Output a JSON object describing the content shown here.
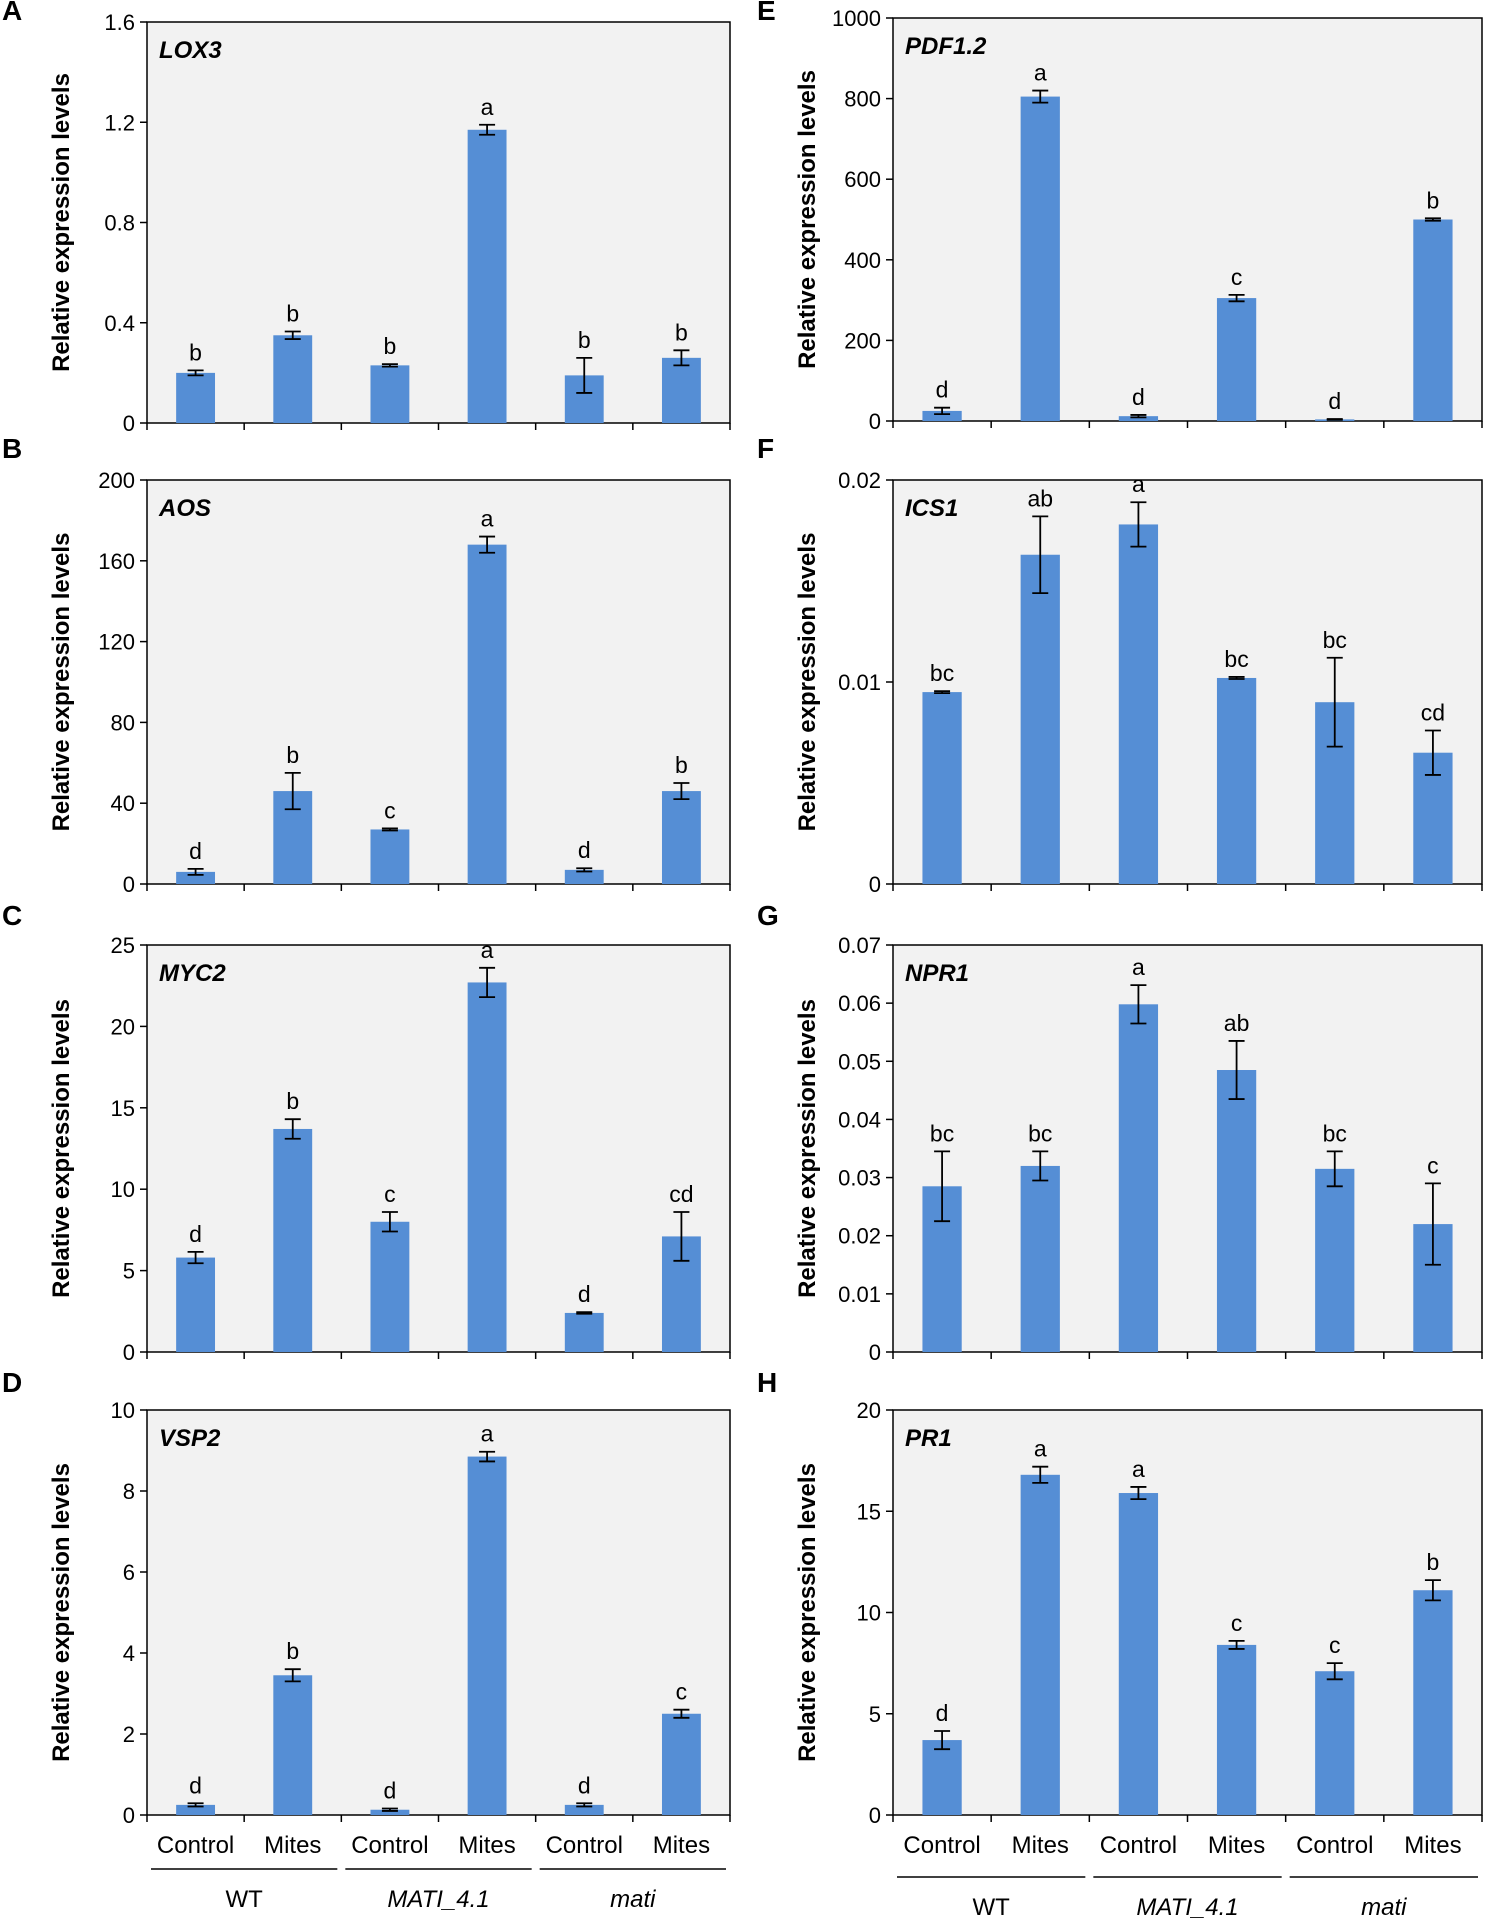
{
  "figure": {
    "bar_color": "#558ED5",
    "plot_background": "#F2F2F2",
    "group_labels": [
      "WT",
      "MATI_4.1",
      "mati"
    ],
    "group_label_italic": [
      false,
      true,
      true
    ],
    "condition_labels": [
      "Control",
      "Mites",
      "Control",
      "Mites",
      "Control",
      "Mites"
    ]
  },
  "chart_data": [
    {
      "panel": "A",
      "type": "bar",
      "gene": "LOX3",
      "ylabel": "Relative expression levels",
      "categories": [
        "WT Control",
        "WT Mites",
        "MATI_4.1 Control",
        "MATI_4.1 Mites",
        "mati Control",
        "mati Mites"
      ],
      "values": [
        0.2,
        0.35,
        0.23,
        1.17,
        0.19,
        0.26
      ],
      "errors": [
        0.01,
        0.015,
        0.005,
        0.02,
        0.07,
        0.03
      ],
      "letters": [
        "b",
        "b",
        "b",
        "a",
        "b",
        "b"
      ],
      "ylim": [
        0,
        1.6
      ],
      "yticks": [
        0,
        0.4,
        0.8,
        1.2,
        1.6
      ],
      "yticklabels": [
        "0",
        "0.4",
        "0.8",
        "1.2",
        "1.6"
      ]
    },
    {
      "panel": "B",
      "type": "bar",
      "gene": "AOS",
      "ylabel": "Relative expression levels",
      "categories": [
        "WT Control",
        "WT Mites",
        "MATI_4.1 Control",
        "MATI_4.1 Mites",
        "mati Control",
        "mati Mites"
      ],
      "values": [
        6,
        46,
        27,
        168,
        7,
        46
      ],
      "errors": [
        1.5,
        9,
        0.5,
        4,
        0.8,
        4
      ],
      "letters": [
        "d",
        "b",
        "c",
        "a",
        "d",
        "b"
      ],
      "ylim": [
        0,
        200
      ],
      "yticks": [
        0,
        40,
        80,
        120,
        160,
        200
      ],
      "yticklabels": [
        "0",
        "40",
        "80",
        "120",
        "160",
        "200"
      ]
    },
    {
      "panel": "C",
      "type": "bar",
      "gene": "MYC2",
      "ylabel": "Relative expression levels",
      "categories": [
        "WT Control",
        "WT Mites",
        "MATI_4.1 Control",
        "MATI_4.1 Mites",
        "mati Control",
        "mati Mites"
      ],
      "values": [
        5.8,
        13.7,
        8.0,
        22.7,
        2.4,
        7.1
      ],
      "errors": [
        0.35,
        0.6,
        0.6,
        0.9,
        0.05,
        1.5
      ],
      "letters": [
        "d",
        "b",
        "c",
        "a",
        "d",
        "cd"
      ],
      "ylim": [
        0,
        25
      ],
      "yticks": [
        0,
        5,
        10,
        15,
        20,
        25
      ],
      "yticklabels": [
        "0",
        "5",
        "10",
        "15",
        "20",
        "25"
      ]
    },
    {
      "panel": "D",
      "type": "bar",
      "gene": "VSP2",
      "ylabel": "Relative expression levels",
      "categories": [
        "WT Control",
        "WT Mites",
        "MATI_4.1 Control",
        "MATI_4.1 Mites",
        "mati Control",
        "mati Mites"
      ],
      "values": [
        0.25,
        3.45,
        0.13,
        8.85,
        0.25,
        2.5
      ],
      "errors": [
        0.04,
        0.15,
        0.03,
        0.12,
        0.04,
        0.1
      ],
      "letters": [
        "d",
        "b",
        "d",
        "a",
        "d",
        "c"
      ],
      "ylim": [
        0,
        10
      ],
      "yticks": [
        0,
        2,
        4,
        6,
        8,
        10
      ],
      "yticklabels": [
        "0",
        "2",
        "4",
        "6",
        "8",
        "10"
      ]
    },
    {
      "panel": "E",
      "type": "bar",
      "gene": "PDF1.2",
      "ylabel": "Relative expression levels",
      "categories": [
        "WT Control",
        "WT Mites",
        "MATI_4.1 Control",
        "MATI_4.1 Mites",
        "mati Control",
        "mati Mites"
      ],
      "values": [
        25,
        805,
        12,
        305,
        4,
        500
      ],
      "errors": [
        8,
        15,
        3,
        8,
        1,
        3
      ],
      "letters": [
        "d",
        "a",
        "d",
        "c",
        "d",
        "b"
      ],
      "ylim": [
        0,
        1000
      ],
      "yticks": [
        0,
        200,
        400,
        600,
        800,
        1000
      ],
      "yticklabels": [
        "0",
        "200",
        "400",
        "600",
        "800",
        "1000"
      ]
    },
    {
      "panel": "F",
      "type": "bar",
      "gene": "ICS1",
      "ylabel": "Relative expression levels",
      "categories": [
        "WT Control",
        "WT Mites",
        "MATI_4.1 Control",
        "MATI_4.1 Mites",
        "mati Control",
        "mati Mites"
      ],
      "values": [
        0.0095,
        0.0163,
        0.0178,
        0.0102,
        0.009,
        0.0065
      ],
      "errors": [
        5e-05,
        0.0019,
        0.0011,
        5e-05,
        0.0022,
        0.0011
      ],
      "letters": [
        "bc",
        "ab",
        "a",
        "bc",
        "bc",
        "cd"
      ],
      "ylim": [
        0,
        0.02
      ],
      "yticks": [
        0,
        0.01,
        0.02
      ],
      "yticklabels": [
        "0",
        "0.01",
        "0.02"
      ]
    },
    {
      "panel": "G",
      "type": "bar",
      "gene": "NPR1",
      "ylabel": "Relative expression levels",
      "categories": [
        "WT Control",
        "WT Mites",
        "MATI_4.1 Control",
        "MATI_4.1 Mites",
        "mati Control",
        "mati Mites"
      ],
      "values": [
        0.0285,
        0.032,
        0.0598,
        0.0485,
        0.0315,
        0.022
      ],
      "errors": [
        0.006,
        0.0025,
        0.0033,
        0.005,
        0.003,
        0.007
      ],
      "letters": [
        "bc",
        "bc",
        "a",
        "ab",
        "bc",
        "c"
      ],
      "ylim": [
        0,
        0.07
      ],
      "yticks": [
        0,
        0.01,
        0.02,
        0.03,
        0.04,
        0.05,
        0.06,
        0.07
      ],
      "yticklabels": [
        "0",
        "0.01",
        "0.02",
        "0.03",
        "0.04",
        "0.05",
        "0.06",
        "0.07"
      ]
    },
    {
      "panel": "H",
      "type": "bar",
      "gene": "PR1",
      "ylabel": "Relative expression levels",
      "categories": [
        "WT Control",
        "WT Mites",
        "MATI_4.1 Control",
        "MATI_4.1 Mites",
        "mati Control",
        "mati Mites"
      ],
      "values": [
        3.7,
        16.8,
        15.9,
        8.4,
        7.1,
        11.1
      ],
      "errors": [
        0.45,
        0.4,
        0.3,
        0.2,
        0.4,
        0.5
      ],
      "letters": [
        "d",
        "a",
        "a",
        "c",
        "c",
        "b"
      ],
      "ylim": [
        0,
        20
      ],
      "yticks": [
        0,
        5,
        10,
        15,
        20
      ],
      "yticklabels": [
        "0",
        "5",
        "10",
        "15",
        "20"
      ]
    }
  ]
}
